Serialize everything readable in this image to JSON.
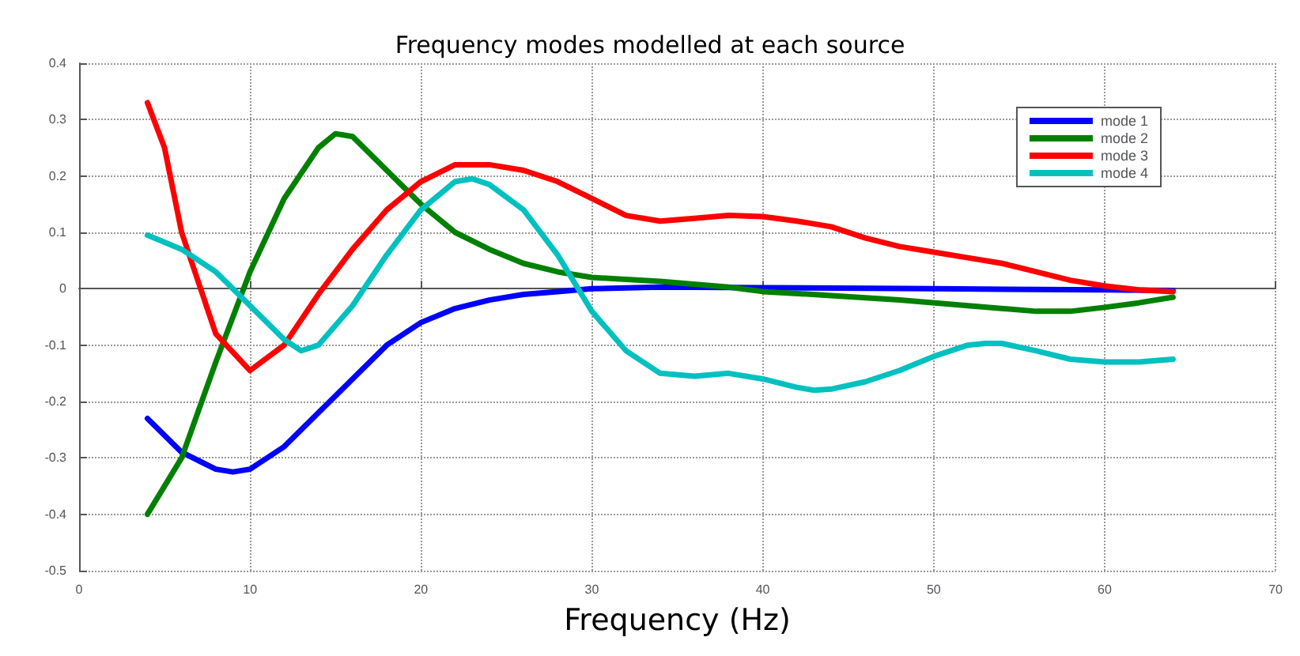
{
  "chart_data": {
    "type": "line",
    "title": "Frequency modes modelled at each source",
    "xlabel": "Frequency (Hz)",
    "xlim": [
      0,
      70
    ],
    "xticks": [
      0,
      10,
      20,
      30,
      40,
      50,
      60,
      70
    ],
    "ylim": [
      -0.5,
      0.4
    ],
    "yticks": [
      -0.5,
      -0.4,
      -0.3,
      -0.2,
      -0.1,
      0,
      0.1,
      0.2,
      0.3,
      0.4
    ],
    "grid": true,
    "legend": "top right",
    "line_style": "solid",
    "marker": "none",
    "series": [
      {
        "name": "mode 1",
        "color": "#0000ff",
        "x": [
          4,
          6,
          8,
          9,
          10,
          12,
          14,
          16,
          18,
          20,
          22,
          24,
          26,
          28,
          30,
          34,
          40,
          50,
          60,
          64
        ],
        "values": [
          -0.23,
          -0.29,
          -0.32,
          -0.325,
          -0.32,
          -0.28,
          -0.22,
          -0.16,
          -0.1,
          -0.06,
          -0.035,
          -0.02,
          -0.01,
          -0.005,
          0,
          0.003,
          0.002,
          0,
          -0.002,
          -0.003
        ]
      },
      {
        "name": "mode 2",
        "color": "#008000",
        "x": [
          4,
          6,
          8,
          10,
          12,
          14,
          15,
          16,
          18,
          20,
          22,
          24,
          26,
          28,
          30,
          34,
          38,
          40,
          44,
          48,
          52,
          56,
          58,
          60,
          62,
          64
        ],
        "values": [
          -0.4,
          -0.3,
          -0.13,
          0.03,
          0.16,
          0.25,
          0.275,
          0.27,
          0.21,
          0.15,
          0.1,
          0.07,
          0.045,
          0.03,
          0.02,
          0.013,
          0.003,
          -0.005,
          -0.012,
          -0.02,
          -0.03,
          -0.04,
          -0.04,
          -0.033,
          -0.025,
          -0.015
        ]
      },
      {
        "name": "mode 3",
        "color": "#ff0000",
        "x": [
          4,
          5,
          6,
          8,
          10,
          12,
          14,
          16,
          18,
          20,
          22,
          24,
          26,
          28,
          30,
          32,
          34,
          36,
          38,
          40,
          42,
          44,
          46,
          48,
          50,
          52,
          54,
          56,
          58,
          60,
          62,
          64
        ],
        "values": [
          0.33,
          0.25,
          0.1,
          -0.08,
          -0.145,
          -0.1,
          -0.01,
          0.07,
          0.14,
          0.19,
          0.22,
          0.22,
          0.21,
          0.19,
          0.16,
          0.13,
          0.12,
          0.125,
          0.13,
          0.128,
          0.12,
          0.11,
          0.09,
          0.075,
          0.065,
          0.055,
          0.045,
          0.03,
          0.015,
          0.005,
          -0.002,
          -0.005
        ]
      },
      {
        "name": "mode 4",
        "color": "#00c0c0",
        "x": [
          4,
          6,
          8,
          10,
          12,
          13,
          14,
          16,
          18,
          20,
          22,
          23,
          24,
          26,
          28,
          30,
          32,
          34,
          36,
          38,
          40,
          42,
          43,
          44,
          46,
          48,
          50,
          52,
          53,
          54,
          56,
          58,
          60,
          62,
          64
        ],
        "values": [
          0.095,
          0.07,
          0.03,
          -0.03,
          -0.09,
          -0.11,
          -0.1,
          -0.03,
          0.06,
          0.14,
          0.19,
          0.195,
          0.185,
          0.14,
          0.06,
          -0.04,
          -0.11,
          -0.15,
          -0.155,
          -0.15,
          -0.16,
          -0.175,
          -0.18,
          -0.178,
          -0.165,
          -0.145,
          -0.12,
          -0.1,
          -0.097,
          -0.097,
          -0.11,
          -0.125,
          -0.13,
          -0.13,
          -0.125
        ]
      }
    ]
  }
}
